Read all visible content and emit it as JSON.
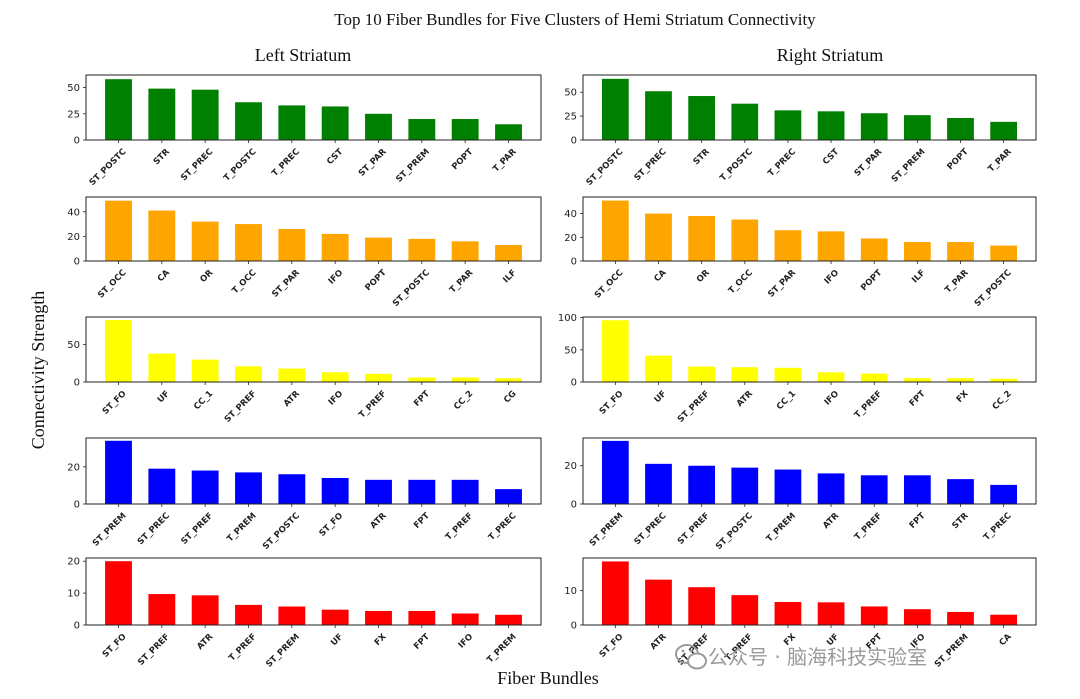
{
  "title": "Top 10 Fiber Bundles for Five Clusters of Hemi Striatum Connectivity",
  "column_titles": [
    "Left Striatum",
    "Right Striatum"
  ],
  "ylabel": "Connectivity Strength",
  "xlabel": "Fiber Bundles",
  "watermark": "公众号 · 脑海科技实验室",
  "chart_data": [
    {
      "type": "bar",
      "side": "Left Striatum",
      "cluster": 1,
      "color": "#008000",
      "categories": [
        "ST_POSTC",
        "STR",
        "ST_PREC",
        "T_POSTC",
        "T_PREC",
        "CST",
        "ST_PAR",
        "ST_PREM",
        "POPT",
        "T_PAR"
      ],
      "values": [
        58,
        49,
        48,
        36,
        33,
        32,
        25,
        20,
        20,
        15
      ],
      "ylim": [
        0,
        62
      ],
      "yticks": [
        0,
        25,
        50
      ]
    },
    {
      "type": "bar",
      "side": "Right Striatum",
      "cluster": 1,
      "color": "#008000",
      "categories": [
        "ST_POSTC",
        "ST_PREC",
        "STR",
        "T_POSTC",
        "T_PREC",
        "CST",
        "ST_PAR",
        "ST_PREM",
        "POPT",
        "T_PAR"
      ],
      "values": [
        64,
        51,
        46,
        38,
        31,
        30,
        28,
        26,
        23,
        19
      ],
      "ylim": [
        0,
        68
      ],
      "yticks": [
        0,
        25,
        50
      ]
    },
    {
      "type": "bar",
      "side": "Left Striatum",
      "cluster": 2,
      "color": "#FFA500",
      "categories": [
        "ST_OCC",
        "CA",
        "OR",
        "T_OCC",
        "ST_PAR",
        "IFO",
        "POPT",
        "ST_POSTC",
        "T_PAR",
        "ILF"
      ],
      "values": [
        49,
        41,
        32,
        30,
        26,
        22,
        19,
        18,
        16,
        13
      ],
      "ylim": [
        0,
        52
      ],
      "yticks": [
        0,
        20,
        40
      ]
    },
    {
      "type": "bar",
      "side": "Right Striatum",
      "cluster": 2,
      "color": "#FFA500",
      "categories": [
        "ST_OCC",
        "CA",
        "OR",
        "T_OCC",
        "ST_PAR",
        "IFO",
        "POPT",
        "ILF",
        "T_PAR",
        "ST_POSTC"
      ],
      "values": [
        51,
        40,
        38,
        35,
        26,
        25,
        19,
        16,
        16,
        13
      ],
      "ylim": [
        0,
        54
      ],
      "yticks": [
        0,
        20,
        40
      ]
    },
    {
      "type": "bar",
      "side": "Left Striatum",
      "cluster": 3,
      "color": "#FFFF00",
      "categories": [
        "ST_FO",
        "UF",
        "CC_1",
        "ST_PREF",
        "ATR",
        "IFO",
        "T_PREF",
        "FPT",
        "CC_2",
        "CG"
      ],
      "values": [
        83,
        38,
        30,
        21,
        18,
        13,
        11,
        6,
        6,
        5
      ],
      "ylim": [
        0,
        87
      ],
      "yticks": [
        0,
        50
      ]
    },
    {
      "type": "bar",
      "side": "Right Striatum",
      "cluster": 3,
      "color": "#FFFF00",
      "categories": [
        "ST_FO",
        "UF",
        "ST_PREF",
        "ATR",
        "CC_1",
        "IFO",
        "T_PREF",
        "FPT",
        "FX",
        "CC_2"
      ],
      "values": [
        96,
        41,
        24,
        23,
        22,
        15,
        13,
        6,
        6,
        5
      ],
      "ylim": [
        0,
        101
      ],
      "yticks": [
        0,
        50,
        100
      ]
    },
    {
      "type": "bar",
      "side": "Left Striatum",
      "cluster": 4,
      "color": "#0000FF",
      "categories": [
        "ST_PREM",
        "ST_PREC",
        "ST_PREF",
        "T_PREM",
        "ST_POSTC",
        "ST_FO",
        "ATR",
        "FPT",
        "T_PREF",
        "T_PREC"
      ],
      "values": [
        34,
        19,
        18,
        17,
        16,
        14,
        13,
        13,
        13,
        8
      ],
      "ylim": [
        0,
        35.5
      ],
      "yticks": [
        0,
        20
      ]
    },
    {
      "type": "bar",
      "side": "Right Striatum",
      "cluster": 4,
      "color": "#0000FF",
      "categories": [
        "ST_PREM",
        "ST_PREC",
        "ST_PREF",
        "ST_POSTC",
        "T_PREM",
        "ATR",
        "T_PREF",
        "FPT",
        "STR",
        "T_PREC"
      ],
      "values": [
        33,
        21,
        20,
        19,
        18,
        16,
        15,
        15,
        13,
        10
      ],
      "ylim": [
        0,
        34.5
      ],
      "yticks": [
        0,
        20
      ]
    },
    {
      "type": "bar",
      "side": "Left Striatum",
      "cluster": 5,
      "color": "#FF0000",
      "categories": [
        "ST_FO",
        "ST_PREF",
        "ATR",
        "T_PREF",
        "ST_PREM",
        "UF",
        "FX",
        "FPT",
        "IFO",
        "T_PREM"
      ],
      "values": [
        20,
        9.7,
        9.3,
        6.3,
        5.8,
        4.8,
        4.4,
        4.4,
        3.6,
        3.2
      ],
      "ylim": [
        0,
        21
      ],
      "yticks": [
        0,
        10,
        20
      ]
    },
    {
      "type": "bar",
      "side": "Right Striatum",
      "cluster": 5,
      "color": "#FF0000",
      "categories": [
        "ST_FO",
        "ATR",
        "ST_PREF",
        "T_PREF",
        "FX",
        "UF",
        "FPT",
        "IFO",
        "ST_PREM",
        "CA"
      ],
      "values": [
        18.5,
        13.2,
        11,
        8.7,
        6.7,
        6.6,
        5.4,
        4.6,
        3.8,
        3
      ],
      "ylim": [
        0,
        19.5
      ],
      "yticks": [
        0,
        10
      ]
    }
  ]
}
